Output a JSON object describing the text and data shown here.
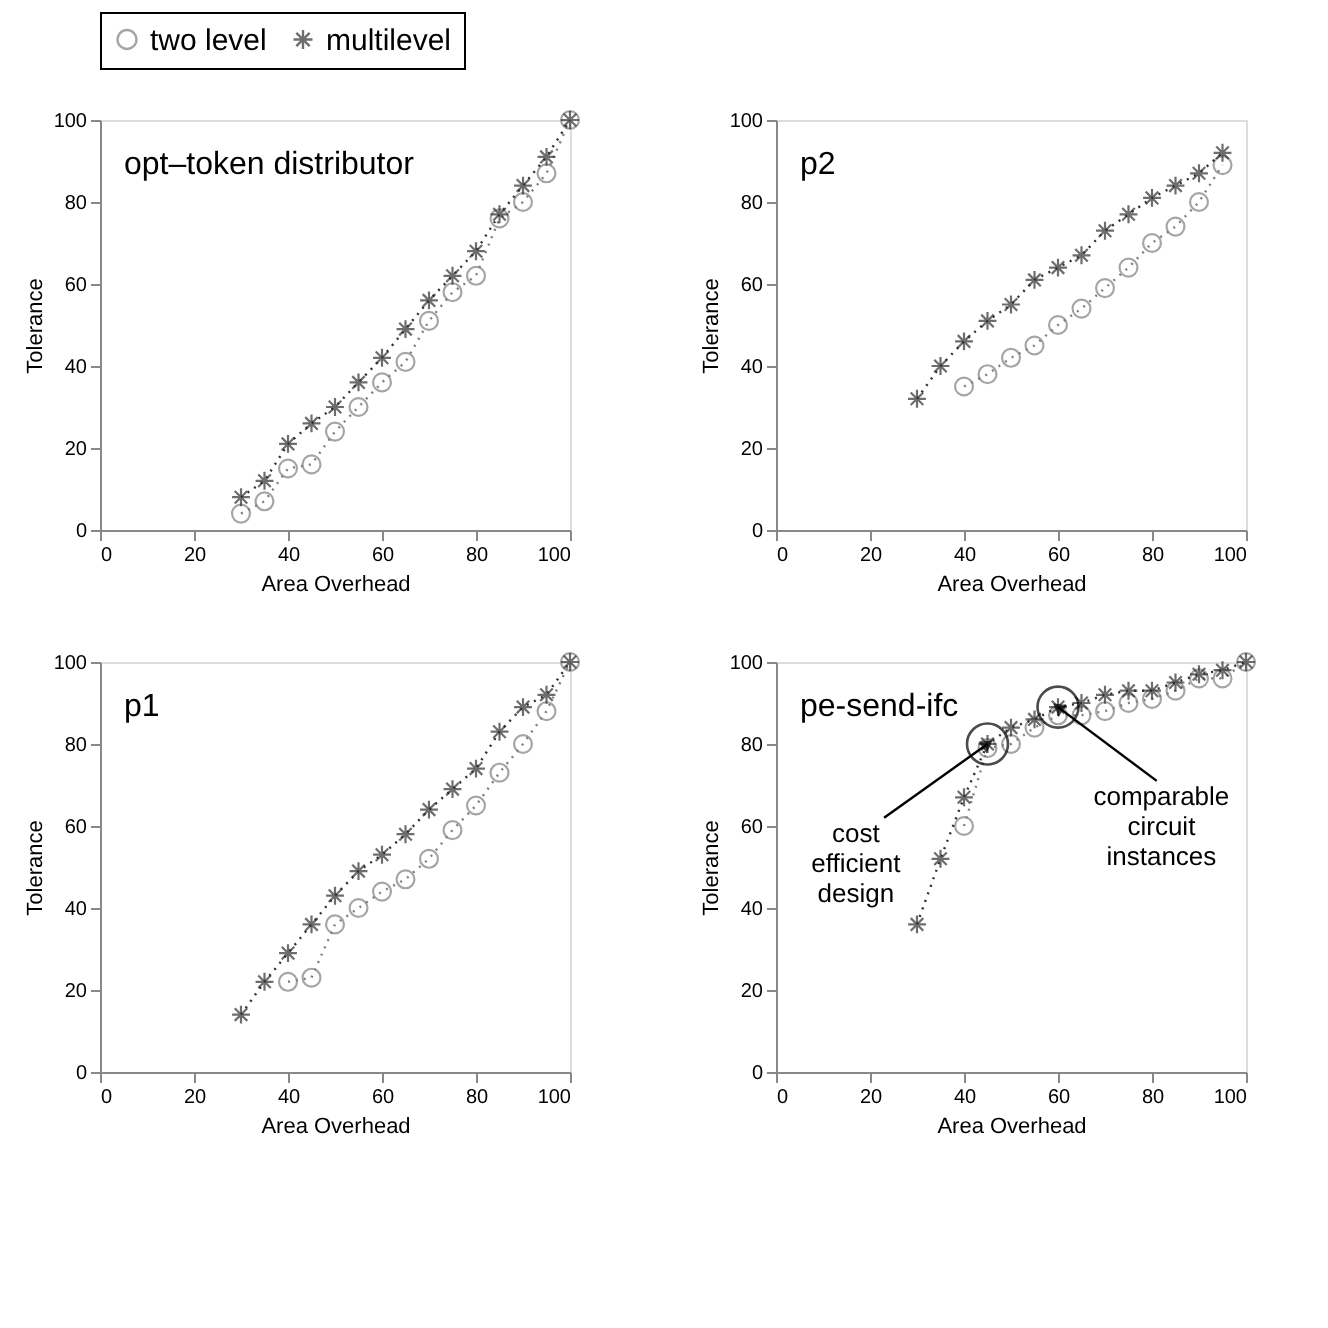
{
  "chart_data": [
    {
      "type": "line",
      "title": "opt–token distributor",
      "xlabel": "Area Overhead",
      "ylabel": "Tolerance",
      "x": [
        30,
        35,
        40,
        45,
        50,
        55,
        60,
        65,
        70,
        75,
        80,
        85,
        90,
        95,
        100
      ],
      "xlim": [
        0,
        100
      ],
      "ylim": [
        0,
        100
      ],
      "xticks": [
        0,
        20,
        40,
        60,
        80,
        100
      ],
      "yticks": [
        0,
        20,
        40,
        60,
        80,
        100
      ],
      "line_style": "dotted",
      "legend": "top",
      "grid": false,
      "series": [
        {
          "name": "two level",
          "color": "#808080",
          "marker": "circle",
          "values": [
            4,
            7,
            15,
            16,
            24,
            30,
            36,
            41,
            51,
            58,
            62,
            76,
            80,
            87,
            100
          ]
        },
        {
          "name": "multilevel",
          "color": "#303030",
          "marker": "cross",
          "values": [
            8,
            12,
            21,
            26,
            30,
            36,
            42,
            49,
            56,
            62,
            68,
            77,
            84,
            91,
            100
          ]
        }
      ]
    },
    {
      "type": "line",
      "title": "p2",
      "xlabel": "Area Overhead",
      "ylabel": "Tolerance",
      "x": [
        30,
        35,
        40,
        45,
        50,
        55,
        60,
        65,
        70,
        75,
        80,
        85,
        90,
        95
      ],
      "xlim": [
        0,
        100
      ],
      "ylim": [
        0,
        100
      ],
      "xticks": [
        0,
        20,
        40,
        60,
        80,
        100
      ],
      "yticks": [
        0,
        20,
        40,
        60,
        80,
        100
      ],
      "line_style": "dotted",
      "grid": false,
      "series": [
        {
          "name": "two level",
          "color": "#808080",
          "marker": "circle",
          "values": [
            null,
            null,
            35,
            38,
            42,
            45,
            50,
            54,
            59,
            64,
            70,
            74,
            80,
            89
          ]
        },
        {
          "name": "multilevel",
          "color": "#303030",
          "marker": "cross",
          "values": [
            32,
            40,
            46,
            51,
            55,
            61,
            64,
            67,
            73,
            77,
            81,
            84,
            87,
            92
          ]
        }
      ]
    },
    {
      "type": "line",
      "title": "p1",
      "xlabel": "Area Overhead",
      "ylabel": "Tolerance",
      "x": [
        30,
        35,
        40,
        45,
        50,
        55,
        60,
        65,
        70,
        75,
        80,
        85,
        90,
        95,
        100
      ],
      "xlim": [
        0,
        100
      ],
      "ylim": [
        0,
        100
      ],
      "xticks": [
        0,
        20,
        40,
        60,
        80,
        100
      ],
      "yticks": [
        0,
        20,
        40,
        60,
        80,
        100
      ],
      "line_style": "dotted",
      "grid": false,
      "series": [
        {
          "name": "two level",
          "color": "#808080",
          "marker": "circle",
          "values": [
            null,
            null,
            22,
            23,
            36,
            40,
            44,
            47,
            52,
            59,
            65,
            73,
            80,
            88,
            100
          ]
        },
        {
          "name": "multilevel",
          "color": "#303030",
          "marker": "cross",
          "values": [
            14,
            22,
            29,
            36,
            43,
            49,
            53,
            58,
            64,
            69,
            74,
            83,
            89,
            92,
            100
          ]
        }
      ]
    },
    {
      "type": "line",
      "title": "pe-send-ifc",
      "xlabel": "Area Overhead",
      "ylabel": "Tolerance",
      "x": [
        30,
        35,
        40,
        45,
        50,
        55,
        60,
        65,
        70,
        75,
        80,
        85,
        90,
        95,
        100
      ],
      "xlim": [
        0,
        100
      ],
      "ylim": [
        0,
        100
      ],
      "xticks": [
        0,
        20,
        40,
        60,
        80,
        100
      ],
      "yticks": [
        0,
        20,
        40,
        60,
        80,
        100
      ],
      "line_style": "dotted",
      "grid": false,
      "series": [
        {
          "name": "two level",
          "color": "#808080",
          "marker": "circle",
          "values": [
            null,
            null,
            60,
            79,
            80,
            84,
            87,
            87,
            88,
            90,
            91,
            93,
            96,
            96,
            100
          ]
        },
        {
          "name": "multilevel",
          "color": "#303030",
          "marker": "cross",
          "values": [
            36,
            52,
            67,
            80,
            84,
            86,
            89,
            90,
            92,
            93,
            93,
            95,
            97,
            98,
            100
          ]
        }
      ],
      "annotations": [
        {
          "text": "cost\nefficient\ndesign",
          "x": 45,
          "y": 80
        },
        {
          "text": "comparable\ncircuit\ninstances",
          "x": 60,
          "y": 89
        }
      ]
    }
  ]
}
